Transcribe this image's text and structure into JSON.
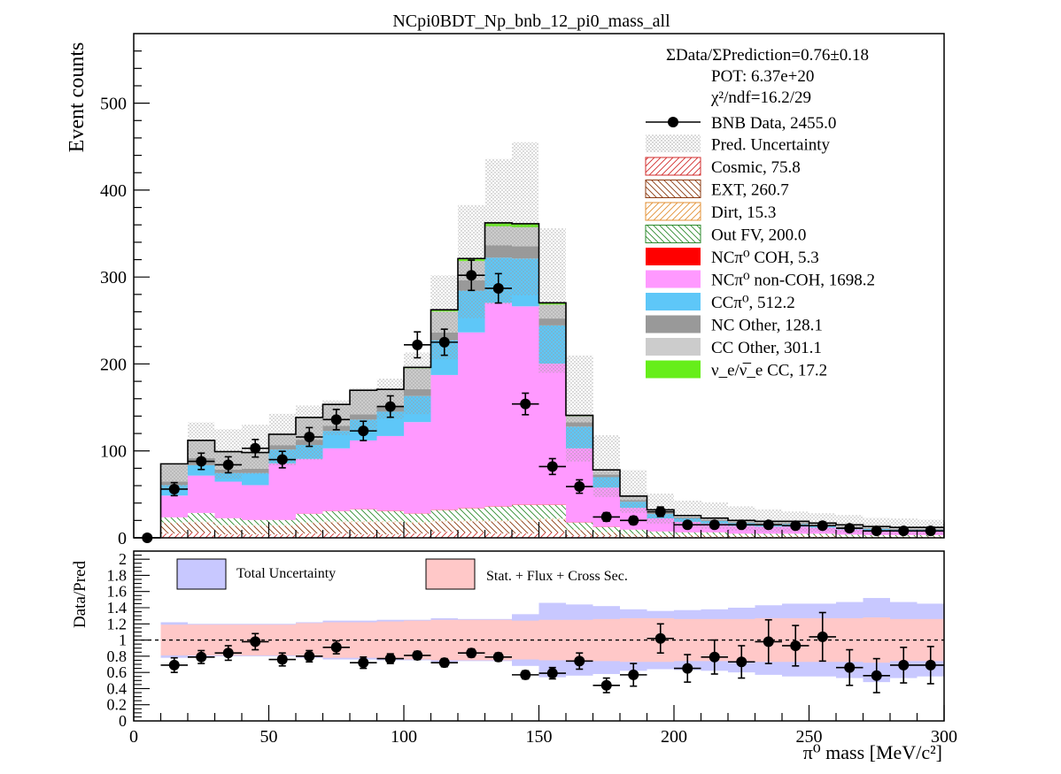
{
  "chart_data": {
    "type": "bar",
    "title": "NCpi0BDT_Np_bnb_12_pi0_mass_all",
    "xlabel": "π⁰ mass [MeV/c²]",
    "ylabel_top": "Event counts",
    "ylabel_bottom": "Data/Pred",
    "xlim": [
      0,
      300
    ],
    "ylim_top": [
      0,
      580
    ],
    "ylim_bottom": [
      0,
      2.1
    ],
    "x_ticks": [
      "0",
      "50",
      "100",
      "150",
      "200",
      "250",
      "300"
    ],
    "y_ticks_top": [
      "0",
      "100",
      "200",
      "300",
      "400",
      "500"
    ],
    "y_ticks_bottom": [
      "0",
      "0.2",
      "0.4",
      "0.6",
      "0.8",
      "1",
      "1.2",
      "1.4",
      "1.6",
      "1.8",
      "2"
    ],
    "bin_edges": [
      0,
      10,
      20,
      30,
      40,
      50,
      60,
      70,
      80,
      90,
      100,
      110,
      120,
      130,
      140,
      150,
      160,
      170,
      180,
      190,
      200,
      210,
      220,
      230,
      240,
      250,
      260,
      270,
      280,
      290,
      300
    ],
    "stack_series": [
      {
        "name": "Cosmic, 75.8",
        "color": "#d22d2d",
        "fill": "hatch-cosmic",
        "values": [
          0,
          5,
          6,
          4,
          4,
          4,
          5,
          5,
          4,
          4,
          5,
          7,
          6,
          5,
          5,
          6,
          3,
          2,
          1,
          1,
          1,
          1,
          1,
          1,
          1,
          1,
          0.5,
          0.5,
          0.5,
          0.5
        ]
      },
      {
        "name": "EXT, 260.7",
        "color": "#8b3a0f",
        "fill": "hatch-ext",
        "values": [
          0,
          12,
          12,
          10,
          10,
          10,
          12,
          13,
          14,
          14,
          12,
          12,
          13,
          14,
          15,
          15,
          6,
          4,
          3,
          2,
          2,
          2,
          1.5,
          1.5,
          1.5,
          1.5,
          1,
          1,
          1,
          1
        ]
      },
      {
        "name": "Dirt, 15.3",
        "color": "#e39135",
        "fill": "hatch-dirt",
        "values": [
          0,
          0.5,
          0.5,
          0.5,
          0.5,
          0.5,
          0.6,
          0.7,
          0.8,
          0.8,
          0.8,
          0.9,
          0.9,
          0.9,
          0.9,
          0.9,
          0.6,
          0.5,
          0.4,
          0.3,
          0.3,
          0.3,
          0.2,
          0.2,
          0.2,
          0.2,
          0.2,
          0.2,
          0.2,
          0.2
        ]
      },
      {
        "name": "Out FV, 200.0",
        "color": "#2e8b2e",
        "fill": "hatch-outfv",
        "values": [
          0,
          6,
          10,
          8,
          6,
          6,
          10,
          12,
          14,
          12,
          10,
          12,
          14,
          16,
          17,
          16,
          8,
          6,
          5,
          4,
          3,
          3,
          2,
          2,
          2,
          2,
          2,
          1.5,
          1.5,
          1.5
        ]
      },
      {
        "name": "NCπ⁰ COH,  5.3",
        "color": "#ff0000",
        "fill": "solid",
        "values": [
          0,
          0.1,
          0.1,
          0.1,
          0.1,
          0.1,
          0.2,
          0.2,
          0.2,
          0.3,
          0.3,
          0.4,
          0.4,
          0.4,
          0.4,
          0.4,
          0.3,
          0.2,
          0.1,
          0.1,
          0.1,
          0.1,
          0.1,
          0.1,
          0.1,
          0.1,
          0.1,
          0.1,
          0.1,
          0.1
        ]
      },
      {
        "name": "NCπ⁰ non-COH,  1698.2",
        "color": "#ff99ff",
        "fill": "solid",
        "values": [
          0,
          25,
          43,
          42,
          40,
          65,
          63,
          72,
          79,
          86,
          105,
          155,
          202,
          234,
          228,
          162,
          85,
          45,
          25,
          15,
          12,
          10,
          9,
          8,
          8,
          7,
          6,
          5,
          4,
          4
        ]
      },
      {
        "name": "CCπ⁰, 512.2",
        "color": "#5ec7f8",
        "fill": "solid",
        "values": [
          0,
          12,
          12,
          10,
          14,
          16,
          16,
          20,
          24,
          28,
          30,
          40,
          48,
          52,
          55,
          44,
          25,
          12,
          7,
          5,
          4,
          3,
          3,
          3,
          3,
          2,
          2,
          2,
          2,
          2
        ]
      },
      {
        "name": "NC Other, 128.1",
        "color": "#999999",
        "fill": "solid",
        "values": [
          0,
          4,
          8,
          4,
          5,
          5,
          6,
          6,
          6,
          7,
          8,
          9,
          12,
          14,
          14,
          8,
          5,
          3,
          2,
          1.5,
          1,
          1,
          1,
          1,
          1,
          1,
          1,
          1,
          1,
          1
        ]
      },
      {
        "name": "CC Other, 301.1",
        "color": "#cccccc",
        "fill": "solid",
        "values": [
          0,
          20,
          20,
          20,
          18,
          12,
          25,
          24,
          27,
          18,
          24,
          24,
          22,
          22,
          22,
          16,
          7,
          5,
          4,
          3,
          2,
          2,
          2,
          2,
          2,
          2,
          2,
          1.5,
          1.5,
          1.5
        ]
      },
      {
        "name": "ν_e/ν̅_e CC, 17.2",
        "color": "#66ee1a",
        "fill": "solid",
        "values": [
          0,
          0.5,
          0.5,
          0.5,
          0.5,
          0.5,
          0.6,
          0.6,
          0.7,
          0.7,
          1,
          2,
          3,
          4,
          4,
          2,
          1,
          0.5,
          0.5,
          0.4,
          0.3,
          0.3,
          0.2,
          0.2,
          0.2,
          0.2,
          0.2,
          0.2,
          0.2,
          0.2
        ]
      }
    ],
    "pred_uncertainty": {
      "name": "Pred. Uncertainty",
      "up": [
        0,
        85,
        133,
        125,
        130,
        143,
        152,
        158,
        172,
        183,
        213,
        302,
        383,
        436,
        455,
        356,
        210,
        118,
        78,
        51,
        43,
        41,
        36,
        33,
        30,
        28,
        26,
        23,
        22,
        21
      ],
      "down": [
        0,
        55,
        83,
        68,
        73,
        83,
        90,
        118,
        124,
        137,
        142,
        205,
        253,
        269,
        279,
        190,
        88,
        47,
        29,
        16,
        12,
        10,
        8,
        7,
        7,
        7,
        6,
        5,
        5,
        5
      ]
    },
    "data_series": {
      "name": "BNB Data, 2455.0",
      "x": [
        5,
        15,
        25,
        35,
        45,
        55,
        65,
        75,
        85,
        95,
        105,
        115,
        125,
        135,
        145,
        155,
        165,
        175,
        185,
        195,
        205,
        215,
        225,
        235,
        245,
        255,
        265,
        275,
        285,
        295
      ],
      "y": [
        0,
        56,
        88,
        84,
        103,
        90,
        116,
        136,
        123,
        151,
        222,
        225,
        302,
        287,
        154,
        82,
        59,
        24,
        20,
        30,
        15,
        15,
        15,
        15,
        14,
        14,
        11,
        8,
        8,
        8
      ],
      "yerr": [
        0,
        7.5,
        9.4,
        9.2,
        10.1,
        9.5,
        10.8,
        11.7,
        11.1,
        12.3,
        14.9,
        15.0,
        17.4,
        16.9,
        12.4,
        9.1,
        7.7,
        4.9,
        4.5,
        5.5,
        3.9,
        3.9,
        3.9,
        3.9,
        3.7,
        3.7,
        3.3,
        2.8,
        2.8,
        2.8
      ]
    },
    "ratio": {
      "x": [
        15,
        25,
        35,
        45,
        55,
        65,
        75,
        85,
        95,
        105,
        115,
        125,
        135,
        145,
        155,
        165,
        175,
        185,
        195,
        205,
        215,
        225,
        235,
        245,
        255,
        265,
        275,
        285,
        295
      ],
      "y": [
        0.69,
        0.79,
        0.84,
        0.98,
        0.76,
        0.8,
        0.91,
        0.72,
        0.77,
        0.81,
        0.72,
        0.84,
        0.79,
        0.57,
        0.59,
        0.74,
        0.44,
        0.57,
        1.02,
        0.65,
        0.79,
        0.73,
        0.98,
        0.93,
        1.04,
        0.66,
        0.56,
        0.69,
        0.69
      ],
      "yerr": [
        0.09,
        0.08,
        0.09,
        0.1,
        0.08,
        0.07,
        0.08,
        0.07,
        0.06,
        0.05,
        0.05,
        0.05,
        0.05,
        0.05,
        0.07,
        0.1,
        0.09,
        0.14,
        0.18,
        0.17,
        0.21,
        0.2,
        0.27,
        0.25,
        0.3,
        0.22,
        0.21,
        0.22,
        0.23
      ],
      "total_unc": [
        0.22,
        0.2,
        0.2,
        0.2,
        0.2,
        0.22,
        0.24,
        0.24,
        0.25,
        0.25,
        0.27,
        0.26,
        0.26,
        0.32,
        0.46,
        0.44,
        0.42,
        0.38,
        0.36,
        0.37,
        0.38,
        0.4,
        0.43,
        0.45,
        0.45,
        0.47,
        0.52,
        0.47,
        0.45
      ],
      "stat_flux_xsec": [
        0.19,
        0.19,
        0.19,
        0.19,
        0.19,
        0.21,
        0.22,
        0.22,
        0.23,
        0.24,
        0.25,
        0.25,
        0.25,
        0.24,
        0.25,
        0.25,
        0.26,
        0.27,
        0.27,
        0.26,
        0.26,
        0.26,
        0.27,
        0.27,
        0.27,
        0.27,
        0.28,
        0.26,
        0.26
      ]
    },
    "stats_text": {
      "ratio": "ΣData/ΣPrediction=0.76±0.18",
      "pot": "POT: 6.37e+20",
      "chi2": "χ²/ndf=16.2/29"
    },
    "legend_bottom": {
      "total": "Total Uncertainty",
      "stat": "Stat. + Flux + Cross Sec."
    },
    "colors": {
      "total_unc": "#c8c8ff",
      "stat_unc": "#ffc8c8",
      "data": "#000000"
    }
  }
}
